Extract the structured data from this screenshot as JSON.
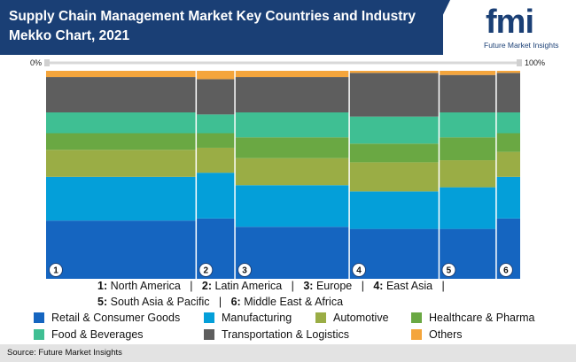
{
  "header": {
    "title": "Supply Chain Management Market Key Countries and Industry Mekko Chart, 2021",
    "logo_text": "fmi",
    "logo_sub": "Future Market Insights"
  },
  "chart_data": {
    "type": "mekko",
    "title": "Supply Chain Management Market Key Countries and Industry Mekko Chart, 2021",
    "axis": {
      "start_label": "0%",
      "end_label": "100%"
    },
    "series": [
      {
        "name": "Retail & Consumer Goods",
        "color": "#1565c0"
      },
      {
        "name": "Manufacturing",
        "color": "#049fd9"
      },
      {
        "name": "Automotive",
        "color": "#9aad45"
      },
      {
        "name": "Healthcare & Pharma",
        "color": "#6aa843"
      },
      {
        "name": "Food & Beverages",
        "color": "#3fbf93"
      },
      {
        "name": "Transportation & Logistics",
        "color": "#5e5e5e"
      },
      {
        "name": "Others",
        "color": "#f4a53c"
      }
    ],
    "columns": [
      {
        "number": "1",
        "region": "North America",
        "width_share": 29.4,
        "segments": [
          28,
          21,
          13,
          8,
          10,
          17,
          3
        ]
      },
      {
        "number": "2",
        "region": "Latin America",
        "width_share": 7.6,
        "segments": [
          29,
          22,
          12,
          7,
          9,
          17,
          4
        ]
      },
      {
        "number": "3",
        "region": "Europe",
        "width_share": 22.4,
        "segments": [
          25,
          20,
          13,
          10,
          12,
          17,
          3
        ]
      },
      {
        "number": "4",
        "region": "East Asia",
        "width_share": 17.6,
        "segments": [
          24,
          18,
          14,
          9,
          13,
          21,
          1
        ]
      },
      {
        "number": "5",
        "region": "South Asia & Pacific",
        "width_share": 11.2,
        "segments": [
          24,
          20,
          13,
          11,
          12,
          18,
          2
        ]
      },
      {
        "number": "6",
        "region": "Middle East & Africa",
        "width_share": 4.7,
        "segments": [
          29,
          20,
          12,
          9,
          10,
          19,
          1
        ]
      }
    ]
  },
  "country_legend": {
    "line1": [
      {
        "num": "1:",
        "name": "North America"
      },
      {
        "num": "2:",
        "name": "Latin America"
      },
      {
        "num": "3:",
        "name": "Europe"
      },
      {
        "num": "4:",
        "name": "East Asia"
      }
    ],
    "line2": [
      {
        "num": "5:",
        "name": "South Asia & Pacific"
      },
      {
        "num": "6:",
        "name": "Middle East & Africa"
      }
    ],
    "separator": "|"
  },
  "source": "Source: Future Market Insights"
}
